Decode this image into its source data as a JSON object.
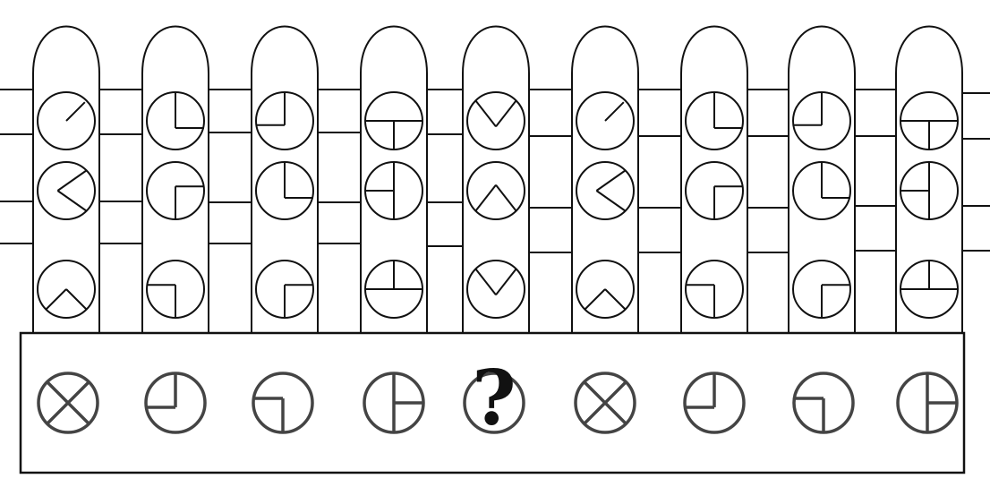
{
  "stroke_color": "#111111",
  "answer_glyph_color": "#444444",
  "fence": {
    "pickets": [
      {
        "symbols": [
          "circle-diagonal-stroke-icon",
          "circle-chevron-left-icon",
          "circle-split-y-icon"
        ]
      },
      {
        "symbols": [
          "circle-quarter-lower-right-icon",
          "circle-quarter-upper-right-icon",
          "circle-quarter-upper-left-icon"
        ]
      },
      {
        "symbols": [
          "circle-quarter-lower-left-icon",
          "circle-quarter-lower-right-icon",
          "circle-quarter-upper-right-icon"
        ]
      },
      {
        "symbols": [
          "circle-t-down-icon",
          "circle-t-left-icon",
          "circle-t-up-icon"
        ]
      },
      {
        "symbols": [
          "circle-chevron-up-icon",
          "circle-chevron-down-icon",
          "circle-chevron-up-icon"
        ]
      },
      {
        "symbols": [
          "circle-diagonal-stroke-icon",
          "circle-chevron-left-icon",
          "circle-split-y-icon"
        ]
      },
      {
        "symbols": [
          "circle-quarter-lower-right-icon",
          "circle-quarter-upper-right-icon",
          "circle-quarter-upper-left-icon"
        ]
      },
      {
        "symbols": [
          "circle-quarter-lower-left-icon",
          "circle-quarter-lower-right-icon",
          "circle-quarter-upper-right-icon"
        ]
      },
      {
        "symbols": [
          "circle-t-down-icon",
          "circle-t-left-icon",
          "circle-t-up-icon"
        ]
      }
    ]
  },
  "answer_row": {
    "symbols": [
      "circle-x-icon",
      "circle-quarter-lower-left-icon",
      "circle-quarter-upper-left-icon",
      "circle-t-right-icon",
      "question-mark-icon",
      "circle-x-icon",
      "circle-quarter-lower-left-icon",
      "circle-quarter-upper-left-icon",
      "circle-t-right-icon"
    ],
    "question_mark": "?"
  }
}
